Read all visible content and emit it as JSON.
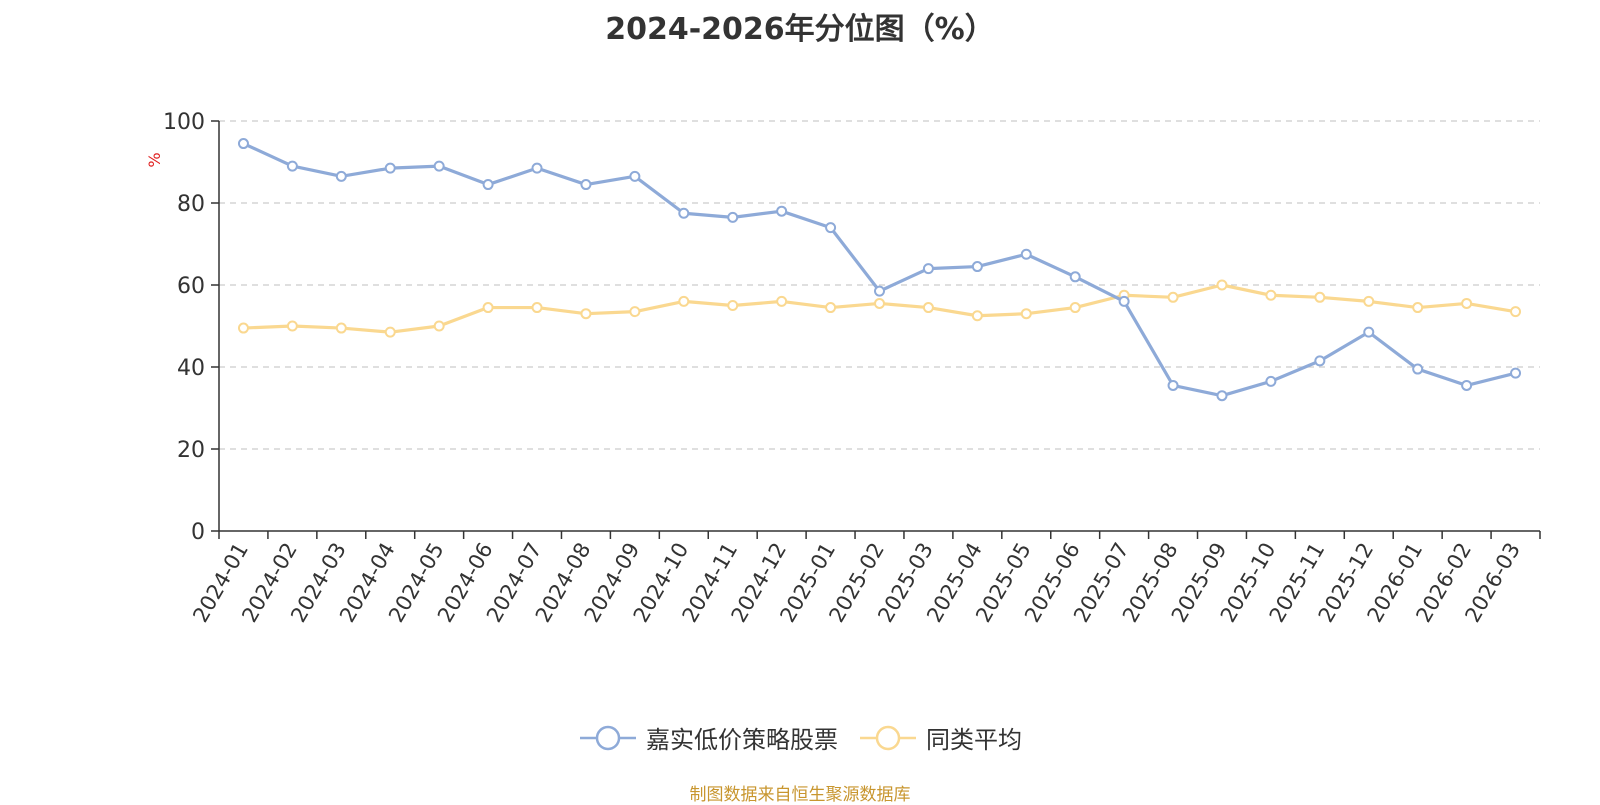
{
  "chart_data": {
    "type": "line",
    "title": "2024-2026年分位图（%）",
    "ylabel": "%",
    "xlabel": "",
    "ylim": [
      0,
      100
    ],
    "yticks": [
      0,
      20,
      40,
      60,
      80,
      100
    ],
    "grid": true,
    "legend_position": "bottom-center",
    "categories": [
      "2024-01",
      "2024-02",
      "2024-03",
      "2024-04",
      "2024-05",
      "2024-06",
      "2024-07",
      "2024-08",
      "2024-09",
      "2024-10",
      "2024-11",
      "2024-12",
      "2025-01",
      "2025-02",
      "2025-03",
      "2025-04",
      "2025-05",
      "2025-06",
      "2025-07",
      "2025-08",
      "2025-09",
      "2025-10",
      "2025-11",
      "2025-12",
      "2026-01",
      "2026-02",
      "2026-03"
    ],
    "series": [
      {
        "name": "嘉实低价策略股票",
        "color": "#8eaad8",
        "values": [
          94.5,
          89,
          86.5,
          88.5,
          89,
          84.5,
          88.5,
          84.5,
          86.5,
          77.5,
          76.5,
          78,
          74,
          58.5,
          64,
          64.5,
          67.5,
          62,
          56,
          35.5,
          33,
          36.5,
          41.5,
          48.5,
          39.5,
          35.5,
          38.5
        ]
      },
      {
        "name": "同类平均",
        "color": "#fad890",
        "values": [
          49.5,
          50,
          49.5,
          48.5,
          50,
          54.5,
          54.5,
          53,
          53.5,
          56,
          55,
          56,
          54.5,
          55.5,
          54.5,
          52.5,
          53,
          54.5,
          57.5,
          57,
          60,
          57.5,
          57,
          56,
          54.5,
          55.5,
          53.5
        ]
      }
    ]
  },
  "footer": "制图数据来自恒生聚源数据库"
}
